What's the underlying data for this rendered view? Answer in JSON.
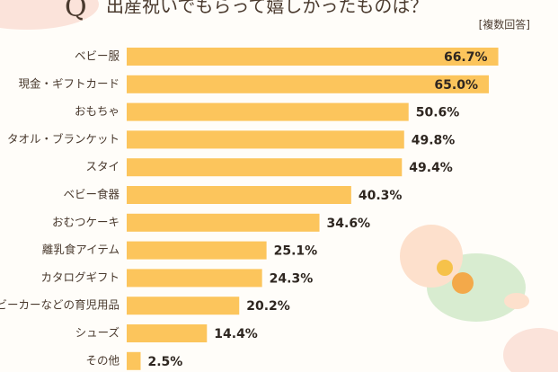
{
  "chart_data": {
    "type": "bar",
    "orientation": "horizontal",
    "q_mark": "Q",
    "title": "出産祝いでもらって嬉しかったものは？",
    "subtitle": "[複数回答]",
    "categories": [
      "ベビー服",
      "現金・ギフトカード",
      "おもちゃ",
      "タオル・ブランケット",
      "スタイ",
      "ベビー食器",
      "おむつケーキ",
      "離乳食アイテム",
      "カタログギフト",
      "ベビーカーなどの育児用品",
      "シューズ",
      "その他"
    ],
    "values": [
      66.7,
      65.0,
      50.6,
      49.8,
      49.4,
      40.3,
      34.6,
      25.1,
      24.3,
      20.2,
      14.4,
      2.5
    ],
    "value_labels": [
      "66.7%",
      "65.0%",
      "50.6%",
      "49.8%",
      "49.4%",
      "40.3%",
      "34.6%",
      "25.1%",
      "24.3%",
      "20.2%",
      "14.4%",
      "2.5%"
    ],
    "color": "#fcc55c"
  }
}
